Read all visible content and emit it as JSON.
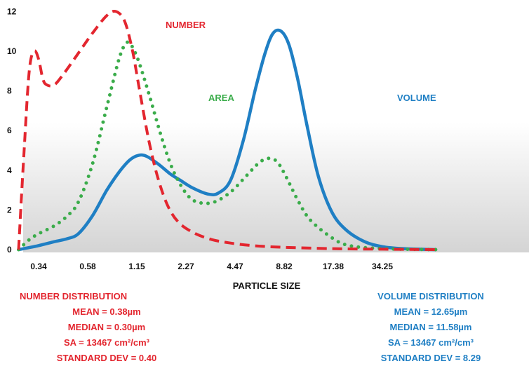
{
  "chart_data": {
    "type": "line",
    "xlabel": "PARTICLE SIZE",
    "ylabel": "",
    "x_ticks": [
      "0.34",
      "0.58",
      "1.15",
      "2.27",
      "4.47",
      "8.82",
      "17.38",
      "34.25"
    ],
    "y_ticks": [
      0,
      2,
      4,
      6,
      8,
      10,
      12
    ],
    "ylim": [
      0,
      12
    ],
    "grid": false,
    "series": [
      {
        "name": "NUMBER",
        "color": "#e3262f",
        "style": "dashed",
        "label_text": "NUMBER",
        "points": [
          [
            0.26,
            0
          ],
          [
            0.28,
            5
          ],
          [
            0.3,
            9
          ],
          [
            0.32,
            10
          ],
          [
            0.34,
            9.6
          ],
          [
            0.36,
            8.6
          ],
          [
            0.38,
            8.3
          ],
          [
            0.42,
            8.3
          ],
          [
            0.48,
            8.9
          ],
          [
            0.58,
            9.9
          ],
          [
            0.7,
            10.9
          ],
          [
            0.85,
            11.8
          ],
          [
            0.96,
            12
          ],
          [
            1.08,
            11.5
          ],
          [
            1.2,
            10
          ],
          [
            1.32,
            8
          ],
          [
            1.5,
            5.4
          ],
          [
            1.7,
            3.5
          ],
          [
            1.95,
            2.1
          ],
          [
            2.27,
            1.3
          ],
          [
            2.8,
            0.8
          ],
          [
            3.5,
            0.5
          ],
          [
            4.47,
            0.33
          ],
          [
            6,
            0.2
          ],
          [
            8.82,
            0.12
          ],
          [
            17.38,
            0.05
          ],
          [
            34.25,
            0.02
          ],
          [
            70,
            0
          ]
        ]
      },
      {
        "name": "AREA",
        "color": "#3aac4a",
        "style": "dotted",
        "label_text": "AREA",
        "points": [
          [
            0.26,
            0
          ],
          [
            0.3,
            0.5
          ],
          [
            0.34,
            0.8
          ],
          [
            0.42,
            1.2
          ],
          [
            0.5,
            1.7
          ],
          [
            0.58,
            2.4
          ],
          [
            0.7,
            4.3
          ],
          [
            0.85,
            7.2
          ],
          [
            1,
            9.6
          ],
          [
            1.1,
            10.4
          ],
          [
            1.18,
            10.3
          ],
          [
            1.3,
            9.5
          ],
          [
            1.5,
            7.8
          ],
          [
            1.75,
            5.8
          ],
          [
            2,
            4.3
          ],
          [
            2.27,
            3.3
          ],
          [
            2.6,
            2.6
          ],
          [
            3,
            2.35
          ],
          [
            3.6,
            2.4
          ],
          [
            4.47,
            2.9
          ],
          [
            5.5,
            3.7
          ],
          [
            6.6,
            4.4
          ],
          [
            7.5,
            4.6
          ],
          [
            8.4,
            4.4
          ],
          [
            9.5,
            3.6
          ],
          [
            11,
            2.5
          ],
          [
            13,
            1.5
          ],
          [
            17.38,
            0.6
          ],
          [
            22,
            0.2
          ],
          [
            34.25,
            0.05
          ],
          [
            70,
            0
          ]
        ]
      },
      {
        "name": "VOLUME",
        "color": "#1f7fc4",
        "style": "solid",
        "label_text": "VOLUME",
        "points": [
          [
            0.26,
            0
          ],
          [
            0.34,
            0.2
          ],
          [
            0.42,
            0.4
          ],
          [
            0.5,
            0.55
          ],
          [
            0.58,
            0.8
          ],
          [
            0.7,
            1.7
          ],
          [
            0.85,
            3
          ],
          [
            1,
            3.9
          ],
          [
            1.15,
            4.5
          ],
          [
            1.3,
            4.75
          ],
          [
            1.45,
            4.7
          ],
          [
            1.7,
            4.3
          ],
          [
            2,
            3.8
          ],
          [
            2.27,
            3.5
          ],
          [
            2.7,
            3.1
          ],
          [
            3.3,
            2.8
          ],
          [
            3.8,
            2.85
          ],
          [
            4.47,
            3.5
          ],
          [
            5.3,
            5.5
          ],
          [
            6.2,
            8
          ],
          [
            7.1,
            9.9
          ],
          [
            7.9,
            10.9
          ],
          [
            8.82,
            11
          ],
          [
            9.8,
            10.3
          ],
          [
            11,
            8.6
          ],
          [
            12.5,
            6.2
          ],
          [
            14.5,
            3.7
          ],
          [
            17.38,
            1.9
          ],
          [
            21,
            1
          ],
          [
            27,
            0.4
          ],
          [
            34.25,
            0.15
          ],
          [
            45,
            0.05
          ],
          [
            70,
            0
          ]
        ]
      }
    ]
  },
  "number_stats": {
    "title": "NUMBER DISTRIBUTION",
    "lines": [
      "MEAN = 0.38µm",
      "MEDIAN = 0.30µm",
      "SA = 13467 cm²/cm³",
      "STANDARD DEV = 0.40"
    ]
  },
  "volume_stats": {
    "title": "VOLUME DISTRIBUTION",
    "lines": [
      "MEAN = 12.65µm",
      "MEDIAN = 11.58µm",
      "SA = 13467 cm²/cm³",
      "STANDARD DEV = 8.29"
    ]
  }
}
